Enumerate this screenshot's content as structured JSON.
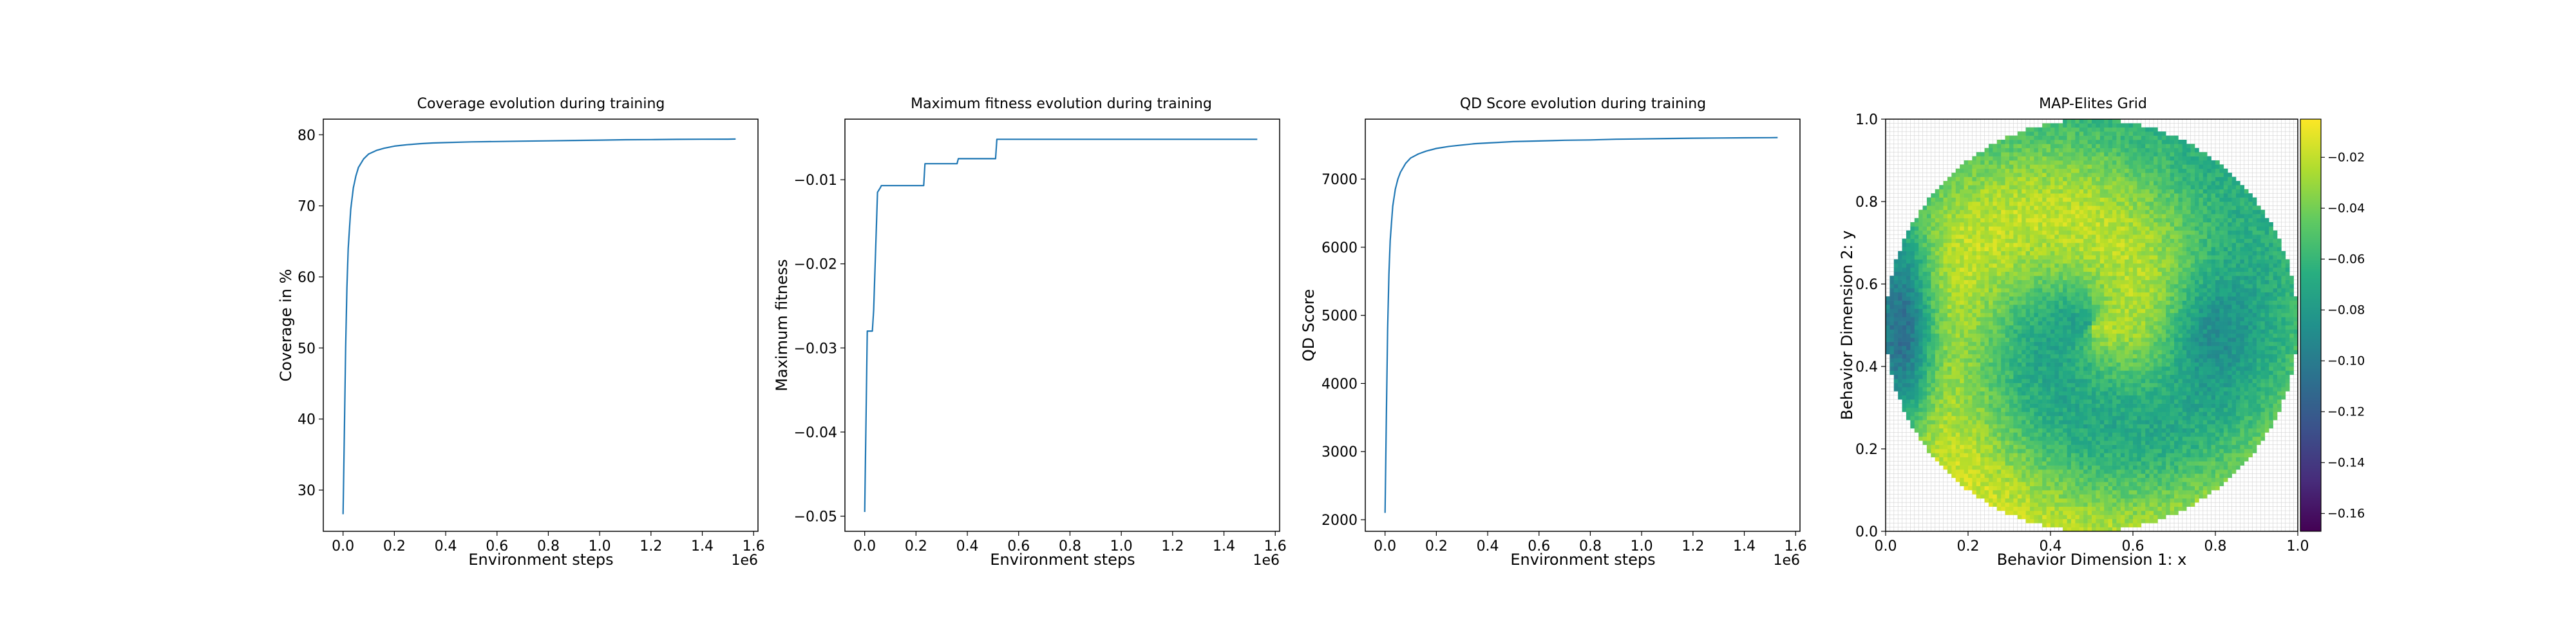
{
  "chart_data": [
    {
      "type": "line",
      "title": "Coverage evolution during training",
      "xlabel": "Environment steps",
      "ylabel": "Coverage in %",
      "x_multiplier_label": "1e6",
      "xlim": [
        -0.077,
        1.617
      ],
      "ylim": [
        24.2,
        82.2
      ],
      "xticks": [
        0.0,
        0.2,
        0.4,
        0.6,
        0.8,
        1.0,
        1.2,
        1.4,
        1.6
      ],
      "xticklabels": [
        "0.0",
        "0.2",
        "0.4",
        "0.6",
        "0.8",
        "1.0",
        "1.2",
        "1.4",
        "1.6"
      ],
      "yticks": [
        30,
        40,
        50,
        60,
        70,
        80
      ],
      "yticklabels": [
        "30",
        "40",
        "50",
        "60",
        "70",
        "80"
      ],
      "color": "#1f77b4",
      "x": [
        0.0,
        0.005,
        0.01,
        0.015,
        0.02,
        0.03,
        0.04,
        0.05,
        0.06,
        0.08,
        0.1,
        0.13,
        0.16,
        0.2,
        0.25,
        0.3,
        0.35,
        0.4,
        0.5,
        0.6,
        0.7,
        0.8,
        0.9,
        1.0,
        1.1,
        1.2,
        1.3,
        1.4,
        1.5,
        1.53
      ],
      "y": [
        26.6,
        38.0,
        50.0,
        58.5,
        64.0,
        69.5,
        72.5,
        74.2,
        75.4,
        76.6,
        77.3,
        77.8,
        78.1,
        78.4,
        78.6,
        78.75,
        78.85,
        78.9,
        79.0,
        79.05,
        79.1,
        79.15,
        79.2,
        79.25,
        79.3,
        79.32,
        79.35,
        79.37,
        79.38,
        79.4
      ]
    },
    {
      "type": "line",
      "title": "Maximum fitness evolution during training",
      "xlabel": "Environment steps",
      "ylabel": "Maximum fitness",
      "x_multiplier_label": "1e6",
      "xlim": [
        -0.077,
        1.617
      ],
      "ylim": [
        -0.0518,
        -0.0028
      ],
      "xticks": [
        0.0,
        0.2,
        0.4,
        0.6,
        0.8,
        1.0,
        1.2,
        1.4,
        1.6
      ],
      "xticklabels": [
        "0.0",
        "0.2",
        "0.4",
        "0.6",
        "0.8",
        "1.0",
        "1.2",
        "1.4",
        "1.6"
      ],
      "yticks": [
        -0.05,
        -0.04,
        -0.03,
        -0.02,
        -0.01
      ],
      "yticklabels": [
        "−0.05",
        "−0.04",
        "−0.03",
        "−0.02",
        "−0.01"
      ],
      "color": "#1f77b4",
      "x": [
        0.0,
        0.01,
        0.03,
        0.035,
        0.05,
        0.06,
        0.065,
        0.1,
        0.23,
        0.235,
        0.36,
        0.365,
        0.51,
        0.515,
        1.53
      ],
      "y": [
        -0.0495,
        -0.028,
        -0.028,
        -0.0255,
        -0.0115,
        -0.011,
        -0.0107,
        -0.0107,
        -0.0107,
        -0.0081,
        -0.0081,
        -0.0075,
        -0.0075,
        -0.0052,
        -0.0052
      ]
    },
    {
      "type": "line",
      "title": "QD Score evolution during training",
      "xlabel": "Environment steps",
      "ylabel": "QD Score",
      "x_multiplier_label": "1e6",
      "xlim": [
        -0.077,
        1.617
      ],
      "ylim": [
        1830,
        7880
      ],
      "xticks": [
        0.0,
        0.2,
        0.4,
        0.6,
        0.8,
        1.0,
        1.2,
        1.4,
        1.6
      ],
      "xticklabels": [
        "0.0",
        "0.2",
        "0.4",
        "0.6",
        "0.8",
        "1.0",
        "1.2",
        "1.4",
        "1.6"
      ],
      "yticks": [
        2000,
        3000,
        4000,
        5000,
        6000,
        7000
      ],
      "yticklabels": [
        "2000",
        "3000",
        "4000",
        "5000",
        "6000",
        "7000"
      ],
      "color": "#1f77b4",
      "x": [
        0.0,
        0.005,
        0.01,
        0.015,
        0.02,
        0.03,
        0.04,
        0.05,
        0.06,
        0.08,
        0.1,
        0.13,
        0.16,
        0.2,
        0.25,
        0.3,
        0.35,
        0.4,
        0.5,
        0.6,
        0.7,
        0.8,
        0.9,
        1.0,
        1.1,
        1.2,
        1.3,
        1.4,
        1.5,
        1.53
      ],
      "y": [
        2100,
        3500,
        4800,
        5600,
        6100,
        6600,
        6850,
        7000,
        7100,
        7230,
        7310,
        7370,
        7410,
        7450,
        7480,
        7500,
        7520,
        7530,
        7550,
        7560,
        7570,
        7575,
        7585,
        7590,
        7595,
        7600,
        7603,
        7606,
        7608,
        7610
      ]
    },
    {
      "type": "heatmap",
      "title": "MAP-Elites Grid",
      "xlabel": "Behavior Dimension 1: x",
      "ylabel": "Behavior Dimension 2: y",
      "xlim": [
        0.0,
        1.0
      ],
      "ylim": [
        0.0,
        1.0
      ],
      "xticks": [
        0.0,
        0.2,
        0.4,
        0.6,
        0.8,
        1.0
      ],
      "xticklabels": [
        "0.0",
        "0.2",
        "0.4",
        "0.6",
        "0.8",
        "1.0"
      ],
      "yticks": [
        0.0,
        0.2,
        0.4,
        0.6,
        0.8,
        1.0
      ],
      "yticklabels": [
        "0.0",
        "0.2",
        "0.4",
        "0.6",
        "0.8",
        "1.0"
      ],
      "grid": "on",
      "colormap": "viridis",
      "colorbar_range": [
        -0.167,
        -0.005
      ],
      "colorbar_ticks": [
        -0.02,
        -0.04,
        -0.06,
        -0.08,
        -0.1,
        -0.12,
        -0.14,
        -0.16
      ],
      "colorbar_ticklabels": [
        "−0.02",
        "−0.04",
        "−0.06",
        "−0.08",
        "−0.10",
        "−0.12",
        "−0.14",
        "−0.16"
      ],
      "grid_resolution": 100,
      "filled_region": "disk centered at (0.5, 0.5) with radius 0.5",
      "fitness_pattern": "swirl: highest fitness (yellow) in the center and along the rim, lowest (purple) at the far left edge, teal band around x≈0.7–0.8, y≈0.5"
    }
  ]
}
